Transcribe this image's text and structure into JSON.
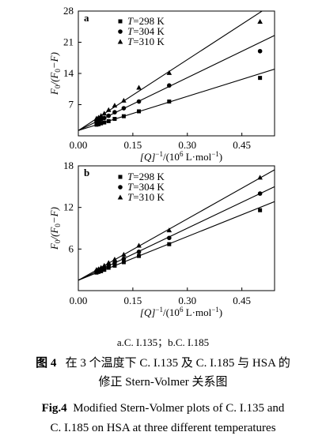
{
  "chart_data": [
    {
      "type": "scatter",
      "panel_label": "a",
      "xlabel_prefix": "[Q]",
      "xlabel_exp": "−1",
      "xlabel_unit": "/(10",
      "xlabel_unit_exp": "6",
      "xlabel_unit_rest": " L·mol",
      "xlabel_unit_rest_exp": "−1",
      "xlabel_close": ")",
      "ylabel": "F0/(F0−F)",
      "xlim": [
        0,
        0.54
      ],
      "ylim": [
        0,
        28
      ],
      "xticks": [
        "0.00",
        "0.15",
        "0.30",
        "0.45"
      ],
      "xtick_values": [
        0,
        0.15,
        0.3,
        0.45
      ],
      "yticks": [
        "7",
        "14",
        "21",
        "28"
      ],
      "ytick_values": [
        7,
        14,
        21,
        28
      ],
      "x": [
        0.05,
        0.0556,
        0.0625,
        0.0714,
        0.0833,
        0.1,
        0.125,
        0.1667,
        0.25,
        0.5
      ],
      "series": [
        {
          "name": "T=298 K",
          "marker": "square",
          "intercept": 1.2,
          "slope": 25.5,
          "y": [
            2.5,
            2.6,
            2.8,
            3.0,
            3.3,
            3.8,
            4.4,
            5.5,
            7.7,
            13.0
          ]
        },
        {
          "name": "T=304 K",
          "marker": "circle",
          "intercept": 1.2,
          "slope": 39.5,
          "y": [
            3.3,
            3.4,
            3.7,
            4.0,
            4.5,
            5.3,
            6.2,
            7.7,
            11.3,
            19.0
          ]
        },
        {
          "name": "T=310 K",
          "marker": "triangle",
          "intercept": 1.2,
          "slope": 53.0,
          "y": [
            3.9,
            4.1,
            4.5,
            5.0,
            5.8,
            6.8,
            7.9,
            10.8,
            14.1,
            25.6
          ]
        }
      ]
    },
    {
      "type": "scatter",
      "panel_label": "b",
      "xlabel_prefix": "[Q]",
      "xlabel_exp": "−1",
      "xlabel_unit": "/(10",
      "xlabel_unit_exp": "6",
      "xlabel_unit_rest": " L·mol",
      "xlabel_unit_rest_exp": "−1",
      "xlabel_close": ")",
      "ylabel": "F0/(F0−F)",
      "xlim": [
        0,
        0.54
      ],
      "ylim": [
        0,
        18
      ],
      "xticks": [
        "0.00",
        "0.15",
        "0.30",
        "0.45"
      ],
      "xtick_values": [
        0,
        0.15,
        0.3,
        0.45
      ],
      "yticks": [
        "6",
        "12",
        "18"
      ],
      "ytick_values": [
        6,
        12,
        18
      ],
      "x": [
        0.05,
        0.0556,
        0.0625,
        0.0714,
        0.0833,
        0.1,
        0.125,
        0.1667,
        0.25,
        0.5
      ],
      "series": [
        {
          "name": "T=298 K",
          "marker": "square",
          "intercept": 1.5,
          "slope": 21.0,
          "y": [
            2.6,
            2.7,
            2.8,
            3.0,
            3.3,
            3.6,
            4.1,
            5.0,
            6.7,
            11.6
          ]
        },
        {
          "name": "T=304 K",
          "marker": "circle",
          "intercept": 1.5,
          "slope": 25.0,
          "y": [
            2.8,
            2.9,
            3.1,
            3.3,
            3.6,
            4.0,
            4.6,
            5.6,
            7.6,
            14.0
          ]
        },
        {
          "name": "T=310 K",
          "marker": "triangle",
          "intercept": 1.5,
          "slope": 29.5,
          "y": [
            3.0,
            3.1,
            3.3,
            3.6,
            4.0,
            4.5,
            5.2,
            6.5,
            8.7,
            16.3
          ]
        }
      ]
    }
  ],
  "caption": {
    "subcaption": "a.C. I.135；b.C. I.185",
    "zh_label": "图 4",
    "zh_text_line1": "在 3 个温度下 C. I.135 及 C. I.185 与 HSA 的",
    "zh_text_line2": "修正 Stern-Volmer 关系图",
    "en_label": "Fig.4",
    "en_text_line1": "Modified Stern-Volmer plots of C. I.135 and",
    "en_text_line2": "C. I.185 on HSA at three different temperatures"
  }
}
